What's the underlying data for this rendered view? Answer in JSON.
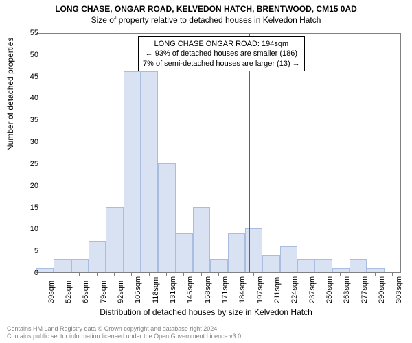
{
  "title_line1": "LONG CHASE, ONGAR ROAD, KELVEDON HATCH, BRENTWOOD, CM15 0AD",
  "title_line2": "Size of property relative to detached houses in Kelvedon Hatch",
  "ylabel": "Number of detached properties",
  "xlabel": "Distribution of detached houses by size in Kelvedon Hatch",
  "footer_line1": "Contains HM Land Registry data © Crown copyright and database right 2024.",
  "footer_line2": "Contains public sector information licensed under the Open Government Licence v3.0.",
  "chart": {
    "type": "histogram",
    "ylim": [
      0,
      55
    ],
    "ytick_step": 5,
    "xticks": [
      "39sqm",
      "52sqm",
      "65sqm",
      "79sqm",
      "92sqm",
      "105sqm",
      "118sqm",
      "131sqm",
      "145sqm",
      "158sqm",
      "171sqm",
      "184sqm",
      "197sqm",
      "211sqm",
      "224sqm",
      "237sqm",
      "250sqm",
      "263sqm",
      "277sqm",
      "290sqm",
      "303sqm"
    ],
    "values": [
      1,
      3,
      3,
      7,
      15,
      46,
      46,
      25,
      9,
      15,
      3,
      9,
      10,
      4,
      6,
      3,
      3,
      1,
      3,
      1,
      0
    ],
    "bar_fill": "#d9e2f3",
    "bar_border": "#a8bde0",
    "axis_color": "#808080",
    "background_color": "#ffffff",
    "vline_index": 12,
    "vline_color": "#cc3333",
    "title_fontsize": 12,
    "label_fontsize": 12,
    "tick_fontsize": 11
  },
  "annotation": {
    "line1": "LONG CHASE ONGAR ROAD: 194sqm",
    "line2": "← 93% of detached houses are smaller (186)",
    "line3": "7% of semi-detached houses are larger (13) →",
    "border_color": "#000000",
    "bg_color": "#ffffff",
    "fontsize": 11
  }
}
